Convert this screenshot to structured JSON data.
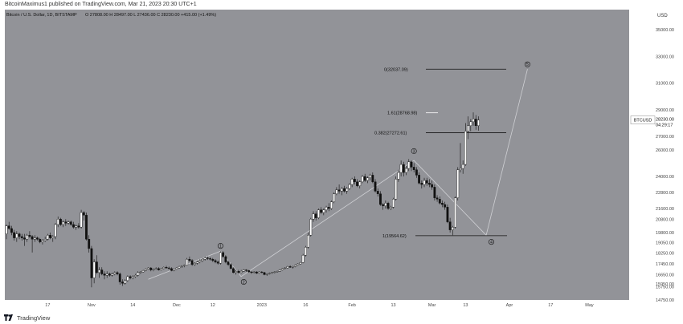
{
  "header": {
    "publisher": "BitcoinMaximus1 published on TradingView.com, Mar 21, 2023 20:30 UTC+1"
  },
  "footer": {
    "brand": "TradingView"
  },
  "colors": {
    "background": "#929398",
    "candle_up": "#ffffff",
    "candle_down": "#111111",
    "line": "#111111",
    "wave": "#cfd0d4",
    "text": "#111111"
  },
  "chart_data": {
    "type": "candlestick",
    "title": "Bitcoin / U.S. Dollar, 1D, BITSTAMP",
    "ohlc_label": "O 27808.00  H 28497.00  L 27436.00  C 28230.00  +415.00 (+1.49%)",
    "symbol": "BTCUSD",
    "last_price": "28230.00",
    "countdown": "04:29:17",
    "currency": "USD",
    "y_range": [
      14750,
      36500
    ],
    "y_ticks": [
      "35000.00",
      "33000.00",
      "31000.00",
      "29000.00",
      "27000.00",
      "26000.00",
      "24000.00",
      "22800.00",
      "21600.00",
      "20800.00",
      "19800.00",
      "19050.00",
      "18250.00",
      "17450.00",
      "16650.00",
      "15950.00",
      "15750.00",
      "14750.00"
    ],
    "x_ticks": [
      "17",
      "Nov",
      "14",
      "Dec",
      "12",
      "2023",
      "16",
      "Feb",
      "13",
      "Mar",
      "13",
      "Apr",
      "17",
      "May"
    ],
    "fib_levels": [
      {
        "label": "0(32037.09)",
        "value": 32037.09
      },
      {
        "label": "1.61(28768.98)",
        "value": 28768.98
      },
      {
        "label": "0.382(27272.61)",
        "value": 27272.61
      },
      {
        "label": "1(19564.62)",
        "value": 19564.62
      }
    ],
    "wave_labels": [
      {
        "label": "1",
        "day": 83,
        "value": 18800
      },
      {
        "label": "2",
        "day": 92,
        "value": 16100
      },
      {
        "label": "3",
        "day": 158,
        "value": 25900
      },
      {
        "label": "4",
        "day": 188,
        "value": 19100
      },
      {
        "label": "5",
        "day": 202,
        "value": 32400
      }
    ],
    "wave_path": [
      {
        "day": 55,
        "value": 16300
      },
      {
        "day": 83,
        "value": 18400
      },
      {
        "day": 91,
        "value": 16500
      },
      {
        "day": 158,
        "value": 25200
      },
      {
        "day": 186,
        "value": 19600
      },
      {
        "day": 202,
        "value": 32037
      }
    ],
    "ohlc": [
      [
        19700,
        20400,
        19300,
        20300
      ],
      [
        20300,
        20600,
        20000,
        20100
      ],
      [
        20100,
        20300,
        19600,
        19800
      ],
      [
        19800,
        20000,
        19200,
        19400
      ],
      [
        19400,
        19900,
        19100,
        19700
      ],
      [
        19700,
        19800,
        19300,
        19500
      ],
      [
        19500,
        19700,
        19200,
        19400
      ],
      [
        19400,
        19700,
        18800,
        19300
      ],
      [
        19300,
        19700,
        19100,
        19600
      ],
      [
        19600,
        19900,
        19400,
        19500
      ],
      [
        19500,
        19600,
        18300,
        19300
      ],
      [
        19300,
        19600,
        19100,
        19400
      ],
      [
        19400,
        19500,
        19200,
        19300
      ],
      [
        19300,
        19400,
        19000,
        19100
      ],
      [
        19100,
        19300,
        18900,
        19200
      ],
      [
        19200,
        19500,
        19100,
        19300
      ],
      [
        19300,
        19700,
        19200,
        19600
      ],
      [
        19600,
        19800,
        19300,
        19400
      ],
      [
        19400,
        19600,
        19100,
        19500
      ],
      [
        19500,
        20500,
        19300,
        20400
      ],
      [
        20400,
        21000,
        20200,
        20800
      ],
      [
        20800,
        20900,
        20300,
        20400
      ],
      [
        20400,
        20700,
        20200,
        20600
      ],
      [
        20600,
        20800,
        20300,
        20500
      ],
      [
        20500,
        20700,
        20400,
        20600
      ],
      [
        20600,
        20700,
        20300,
        20400
      ],
      [
        20400,
        20600,
        20100,
        20200
      ],
      [
        20200,
        20400,
        20000,
        20300
      ],
      [
        20300,
        20500,
        20100,
        20200
      ],
      [
        20200,
        21500,
        20100,
        21300
      ],
      [
        21300,
        21400,
        20700,
        21100
      ],
      [
        21100,
        21300,
        19200,
        19300
      ],
      [
        19300,
        19600,
        18300,
        18600
      ],
      [
        18600,
        18800,
        15700,
        16400
      ],
      [
        16400,
        17800,
        16000,
        17600
      ],
      [
        17600,
        18100,
        16700,
        16800
      ],
      [
        16800,
        17200,
        16400,
        17000
      ],
      [
        17000,
        17200,
        16600,
        16700
      ],
      [
        16700,
        16900,
        16300,
        16600
      ],
      [
        16600,
        16900,
        16400,
        16700
      ],
      [
        16700,
        16800,
        16500,
        16600
      ],
      [
        16600,
        16800,
        16500,
        16700
      ],
      [
        16700,
        16900,
        16600,
        16800
      ],
      [
        16800,
        16900,
        16600,
        16700
      ],
      [
        16700,
        16800,
        15900,
        16100
      ],
      [
        16100,
        16300,
        15800,
        16000
      ],
      [
        16000,
        16300,
        15900,
        16200
      ],
      [
        16200,
        16600,
        16100,
        16500
      ],
      [
        16500,
        16600,
        16300,
        16400
      ],
      [
        16400,
        16600,
        16300,
        16500
      ],
      [
        16500,
        16700,
        16400,
        16600
      ],
      [
        16600,
        16900,
        16500,
        16800
      ],
      [
        16800,
        16900,
        16700,
        16850
      ],
      [
        16850,
        17000,
        16800,
        16950
      ],
      [
        16950,
        17100,
        16900,
        17050
      ],
      [
        17050,
        17200,
        17000,
        17150
      ],
      [
        17150,
        17200,
        16900,
        17000
      ],
      [
        17000,
        17100,
        16900,
        17050
      ],
      [
        17050,
        17200,
        17000,
        17100
      ],
      [
        17100,
        17200,
        16950,
        17000
      ],
      [
        17000,
        17150,
        16950,
        17100
      ],
      [
        17100,
        17250,
        17050,
        17200
      ],
      [
        17200,
        17300,
        17100,
        17150
      ],
      [
        17150,
        17250,
        17000,
        17100
      ],
      [
        17100,
        17200,
        16900,
        16950
      ],
      [
        16950,
        17100,
        16900,
        17050
      ],
      [
        17050,
        17200,
        17000,
        17150
      ],
      [
        17150,
        17300,
        17100,
        17250
      ],
      [
        17250,
        17350,
        17150,
        17300
      ],
      [
        17300,
        17400,
        17200,
        17350
      ],
      [
        17350,
        17900,
        17300,
        17800
      ],
      [
        17800,
        18000,
        17600,
        17700
      ],
      [
        17700,
        17800,
        17300,
        17400
      ],
      [
        17400,
        17600,
        17300,
        17500
      ],
      [
        17500,
        17700,
        17400,
        17600
      ],
      [
        17600,
        17800,
        17500,
        17700
      ],
      [
        17700,
        17900,
        17600,
        17800
      ],
      [
        17800,
        18000,
        17700,
        17900
      ],
      [
        17900,
        18000,
        17750,
        17850
      ],
      [
        17850,
        17950,
        17700,
        17800
      ],
      [
        17800,
        17900,
        17600,
        17700
      ],
      [
        17700,
        17800,
        17500,
        17600
      ],
      [
        17600,
        17700,
        17400,
        17500
      ],
      [
        17500,
        18400,
        17400,
        18300
      ],
      [
        18300,
        18400,
        17900,
        18000
      ],
      [
        18000,
        18100,
        17500,
        17600
      ],
      [
        17600,
        17700,
        17300,
        17400
      ],
      [
        17400,
        17500,
        17050,
        17100
      ],
      [
        17100,
        17200,
        16750,
        16800
      ],
      [
        16800,
        17000,
        16650,
        16900
      ],
      [
        16900,
        17000,
        16700,
        16800
      ],
      [
        16800,
        17000,
        16750,
        16900
      ],
      [
        16900,
        17050,
        16850,
        17000
      ],
      [
        17000,
        17050,
        16850,
        16950
      ],
      [
        16950,
        17000,
        16800,
        16850
      ],
      [
        16850,
        16900,
        16700,
        16800
      ],
      [
        16800,
        16900,
        16750,
        16850
      ],
      [
        16850,
        16900,
        16700,
        16750
      ],
      [
        16750,
        16900,
        16700,
        16850
      ],
      [
        16850,
        16900,
        16750,
        16800
      ],
      [
        16800,
        16850,
        16600,
        16650
      ],
      [
        16650,
        16750,
        16550,
        16700
      ],
      [
        16700,
        16800,
        16650,
        16750
      ],
      [
        16750,
        16850,
        16700,
        16800
      ],
      [
        16800,
        16900,
        16750,
        16850
      ],
      [
        16850,
        16950,
        16800,
        16900
      ],
      [
        16900,
        17050,
        16850,
        17000
      ],
      [
        17000,
        17150,
        16950,
        17100
      ],
      [
        17100,
        17200,
        17050,
        17150
      ],
      [
        17150,
        17300,
        17100,
        17250
      ],
      [
        17250,
        17350,
        17150,
        17200
      ],
      [
        17200,
        17300,
        17100,
        17250
      ],
      [
        17250,
        17400,
        17200,
        17350
      ],
      [
        17350,
        17500,
        17300,
        17450
      ],
      [
        17450,
        17600,
        17400,
        17550
      ],
      [
        17550,
        18200,
        17500,
        18100
      ],
      [
        18100,
        18800,
        18000,
        18700
      ],
      [
        18700,
        19800,
        18600,
        19600
      ],
      [
        19600,
        20900,
        19500,
        20800
      ],
      [
        20800,
        21400,
        20600,
        21200
      ],
      [
        21200,
        21400,
        20700,
        20900
      ],
      [
        20900,
        21600,
        20800,
        21500
      ],
      [
        21500,
        21700,
        21200,
        21300
      ],
      [
        21300,
        21600,
        21100,
        21500
      ],
      [
        21500,
        21800,
        21300,
        21700
      ],
      [
        21700,
        22000,
        21400,
        21600
      ],
      [
        21600,
        22200,
        21500,
        22100
      ],
      [
        22100,
        22800,
        22000,
        22700
      ],
      [
        22700,
        23200,
        22600,
        23000
      ],
      [
        23000,
        23400,
        22700,
        22900
      ],
      [
        22900,
        23200,
        22600,
        23100
      ],
      [
        23100,
        23300,
        22800,
        22900
      ],
      [
        22900,
        23200,
        22700,
        23100
      ],
      [
        23100,
        23500,
        23000,
        23400
      ],
      [
        23400,
        23900,
        23200,
        23800
      ],
      [
        23800,
        24000,
        23400,
        23600
      ],
      [
        23600,
        23800,
        23200,
        23300
      ],
      [
        23300,
        23700,
        23100,
        23600
      ],
      [
        23600,
        24100,
        23500,
        24000
      ],
      [
        24000,
        24200,
        23600,
        23700
      ],
      [
        23700,
        24000,
        23500,
        23900
      ],
      [
        23900,
        24200,
        23700,
        24100
      ],
      [
        24100,
        24300,
        23500,
        23600
      ],
      [
        23600,
        23800,
        22800,
        22900
      ],
      [
        22900,
        23100,
        22500,
        22700
      ],
      [
        22700,
        22900,
        21800,
        21900
      ],
      [
        21900,
        22000,
        21500,
        21800
      ],
      [
        21800,
        22200,
        21600,
        22000
      ],
      [
        22000,
        22100,
        21500,
        21600
      ],
      [
        21600,
        21800,
        21500,
        21700
      ],
      [
        21700,
        22400,
        21600,
        22300
      ],
      [
        22300,
        24000,
        22200,
        23800
      ],
      [
        23800,
        24500,
        23600,
        24300
      ],
      [
        24300,
        25200,
        24000,
        24900
      ],
      [
        24900,
        25100,
        24000,
        24300
      ],
      [
        24300,
        24800,
        24100,
        24600
      ],
      [
        24600,
        25300,
        24400,
        25100
      ],
      [
        25100,
        25200,
        24400,
        24700
      ],
      [
        24700,
        25000,
        24300,
        24500
      ],
      [
        24500,
        24700,
        23900,
        24100
      ],
      [
        24100,
        24300,
        23400,
        23500
      ],
      [
        23500,
        23700,
        23100,
        23400
      ],
      [
        23400,
        23900,
        23200,
        23700
      ],
      [
        23700,
        23900,
        23300,
        23500
      ],
      [
        23500,
        23800,
        23200,
        23400
      ],
      [
        23400,
        23700,
        23000,
        23200
      ],
      [
        23200,
        23400,
        22200,
        22400
      ],
      [
        22400,
        22600,
        22100,
        22300
      ],
      [
        22300,
        22500,
        21900,
        22000
      ],
      [
        22000,
        22200,
        21700,
        21900
      ],
      [
        21900,
        22100,
        21500,
        21700
      ],
      [
        21700,
        21900,
        20500,
        20600
      ],
      [
        20600,
        20900,
        19800,
        20000
      ],
      [
        20000,
        20300,
        19600,
        20200
      ],
      [
        20200,
        22500,
        20100,
        22400
      ],
      [
        22400,
        24700,
        22200,
        24500
      ],
      [
        24500,
        26500,
        24300,
        24600
      ],
      [
        24600,
        25200,
        24200,
        24900
      ],
      [
        24900,
        28000,
        24800,
        27400
      ],
      [
        27400,
        28500,
        26800,
        27800
      ],
      [
        27800,
        28300,
        27400,
        28100
      ],
      [
        28100,
        28800,
        27800,
        28300
      ],
      [
        28300,
        28600,
        27500,
        27800
      ],
      [
        27800,
        28500,
        27436,
        28230
      ]
    ]
  }
}
